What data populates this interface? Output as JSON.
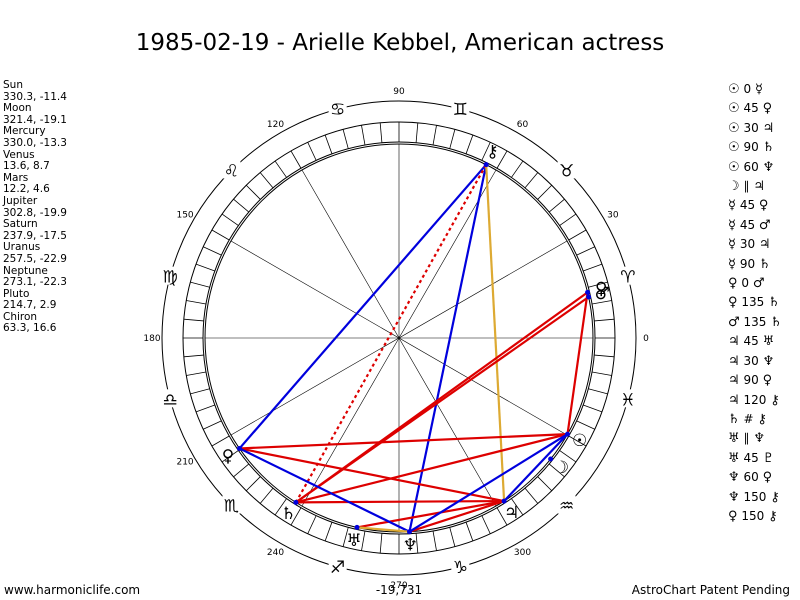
{
  "title": "1985-02-19 - Arielle Kebbel, American actress",
  "planets": [
    {
      "name": "Sun",
      "coords": "330.3, -11.4"
    },
    {
      "name": "Moon",
      "coords": "321.4, -19.1"
    },
    {
      "name": "Mercury",
      "coords": "330.0, -13.3"
    },
    {
      "name": "Venus",
      "coords": "13.6, 8.7"
    },
    {
      "name": "Mars",
      "coords": "12.2, 4.6"
    },
    {
      "name": "Jupiter",
      "coords": "302.8, -19.9"
    },
    {
      "name": "Saturn",
      "coords": "237.9, -17.5"
    },
    {
      "name": "Uranus",
      "coords": "257.5, -22.9"
    },
    {
      "name": "Neptune",
      "coords": "273.1, -22.3"
    },
    {
      "name": "Pluto",
      "coords": "214.7, 2.9"
    },
    {
      "name": "Chiron",
      "coords": "63.3, 16.6"
    }
  ],
  "aspects": [
    {
      "p1": "☉",
      "aspect": "0",
      "p2": "☿"
    },
    {
      "p1": "☉",
      "aspect": "45",
      "p2": "♀"
    },
    {
      "p1": "☉",
      "aspect": "30",
      "p2": "♃"
    },
    {
      "p1": "☉",
      "aspect": "90",
      "p2": "♄"
    },
    {
      "p1": "☉",
      "aspect": "60",
      "p2": "♆"
    },
    {
      "p1": "☽",
      "aspect": "∥",
      "p2": "♃"
    },
    {
      "p1": "☿",
      "aspect": "45",
      "p2": "♀"
    },
    {
      "p1": "☿",
      "aspect": "45",
      "p2": "♂"
    },
    {
      "p1": "☿",
      "aspect": "30",
      "p2": "♃"
    },
    {
      "p1": "☿",
      "aspect": "90",
      "p2": "♄"
    },
    {
      "p1": "♀",
      "aspect": "0",
      "p2": "♂"
    },
    {
      "p1": "♀",
      "aspect": "135",
      "p2": "♄"
    },
    {
      "p1": "♂",
      "aspect": "135",
      "p2": "♄"
    },
    {
      "p1": "♃",
      "aspect": "45",
      "p2": "♅"
    },
    {
      "p1": "♃",
      "aspect": "30",
      "p2": "♆"
    },
    {
      "p1": "♃",
      "aspect": "90",
      "p2": "♀"
    },
    {
      "p1": "♃",
      "aspect": "120",
      "p2": "⚷"
    },
    {
      "p1": "♄",
      "aspect": "#",
      "p2": "⚷"
    },
    {
      "p1": "♅",
      "aspect": "∥",
      "p2": "♆"
    },
    {
      "p1": "♅",
      "aspect": "45",
      "p2": "♇"
    },
    {
      "p1": "♆",
      "aspect": "60",
      "p2": "♀"
    },
    {
      "p1": "♆",
      "aspect": "150",
      "p2": "⚷"
    },
    {
      "p1": "♀",
      "aspect": "150",
      "p2": "⚷"
    }
  ],
  "wheel": {
    "degree_labels": [
      "0",
      "30",
      "60",
      "90",
      "120",
      "150",
      "180",
      "210",
      "240",
      "270",
      "300"
    ],
    "signs": [
      {
        "glyph": "♈",
        "lon": 15
      },
      {
        "glyph": "♉",
        "lon": 45
      },
      {
        "glyph": "♊",
        "lon": 75
      },
      {
        "glyph": "♋",
        "lon": 105
      },
      {
        "glyph": "♌",
        "lon": 135
      },
      {
        "glyph": "♍",
        "lon": 165
      },
      {
        "glyph": "♎",
        "lon": 195
      },
      {
        "glyph": "♏",
        "lon": 225
      },
      {
        "glyph": "♐",
        "lon": 255
      },
      {
        "glyph": "♑",
        "lon": 285
      },
      {
        "glyph": "♒",
        "lon": 315
      },
      {
        "glyph": "♓",
        "lon": 345
      }
    ],
    "planet_glyphs": [
      {
        "glyph": "☉",
        "lon": 330.3
      },
      {
        "glyph": "☽",
        "lon": 321.4
      },
      {
        "glyph": "♀",
        "lon": 13.6
      },
      {
        "glyph": "♂",
        "lon": 12.2
      },
      {
        "glyph": "♃",
        "lon": 302.8
      },
      {
        "glyph": "♄",
        "lon": 237.9
      },
      {
        "glyph": "♅",
        "lon": 257.5
      },
      {
        "glyph": "♆",
        "lon": 273.1
      },
      {
        "glyph": "♀",
        "lon": 214.7
      },
      {
        "glyph": "⚷",
        "lon": 63.3
      }
    ],
    "value_label": "-19,731",
    "aspect_lines": [
      {
        "a": 214.7,
        "b": 63.3,
        "color": "#0000dd",
        "style": "solid"
      },
      {
        "a": 273.1,
        "b": 63.3,
        "color": "#0000dd",
        "style": "solid"
      },
      {
        "a": 237.9,
        "b": 63.3,
        "color": "#dd0000",
        "style": "dotted"
      },
      {
        "a": 302.8,
        "b": 63.3,
        "color": "#ddaa33",
        "style": "solid"
      },
      {
        "a": 237.9,
        "b": 13.6,
        "color": "#dd0000",
        "style": "solid"
      },
      {
        "a": 237.9,
        "b": 12.2,
        "color": "#dd0000",
        "style": "solid"
      },
      {
        "a": 13.6,
        "b": 330.3,
        "color": "#dd0000",
        "style": "solid"
      },
      {
        "a": 214.7,
        "b": 330.3,
        "color": "#dd0000",
        "style": "solid"
      },
      {
        "a": 237.9,
        "b": 330.3,
        "color": "#dd0000",
        "style": "solid"
      },
      {
        "a": 214.7,
        "b": 302.8,
        "color": "#dd0000",
        "style": "solid"
      },
      {
        "a": 237.9,
        "b": 302.8,
        "color": "#dd0000",
        "style": "solid"
      },
      {
        "a": 257.5,
        "b": 302.8,
        "color": "#dd0000",
        "style": "solid"
      },
      {
        "a": 273.1,
        "b": 302.8,
        "color": "#dd0000",
        "style": "solid"
      },
      {
        "a": 214.7,
        "b": 273.1,
        "color": "#0000dd",
        "style": "solid"
      },
      {
        "a": 273.1,
        "b": 330.3,
        "color": "#0000dd",
        "style": "solid"
      },
      {
        "a": 302.8,
        "b": 330.3,
        "color": "#0000dd",
        "style": "solid"
      },
      {
        "a": 257.5,
        "b": 273.1,
        "color": "#ddaa33",
        "style": "solid"
      }
    ]
  },
  "footer": {
    "left": "www.harmoniclife.com",
    "right": "AstroChart Patent Pending"
  }
}
